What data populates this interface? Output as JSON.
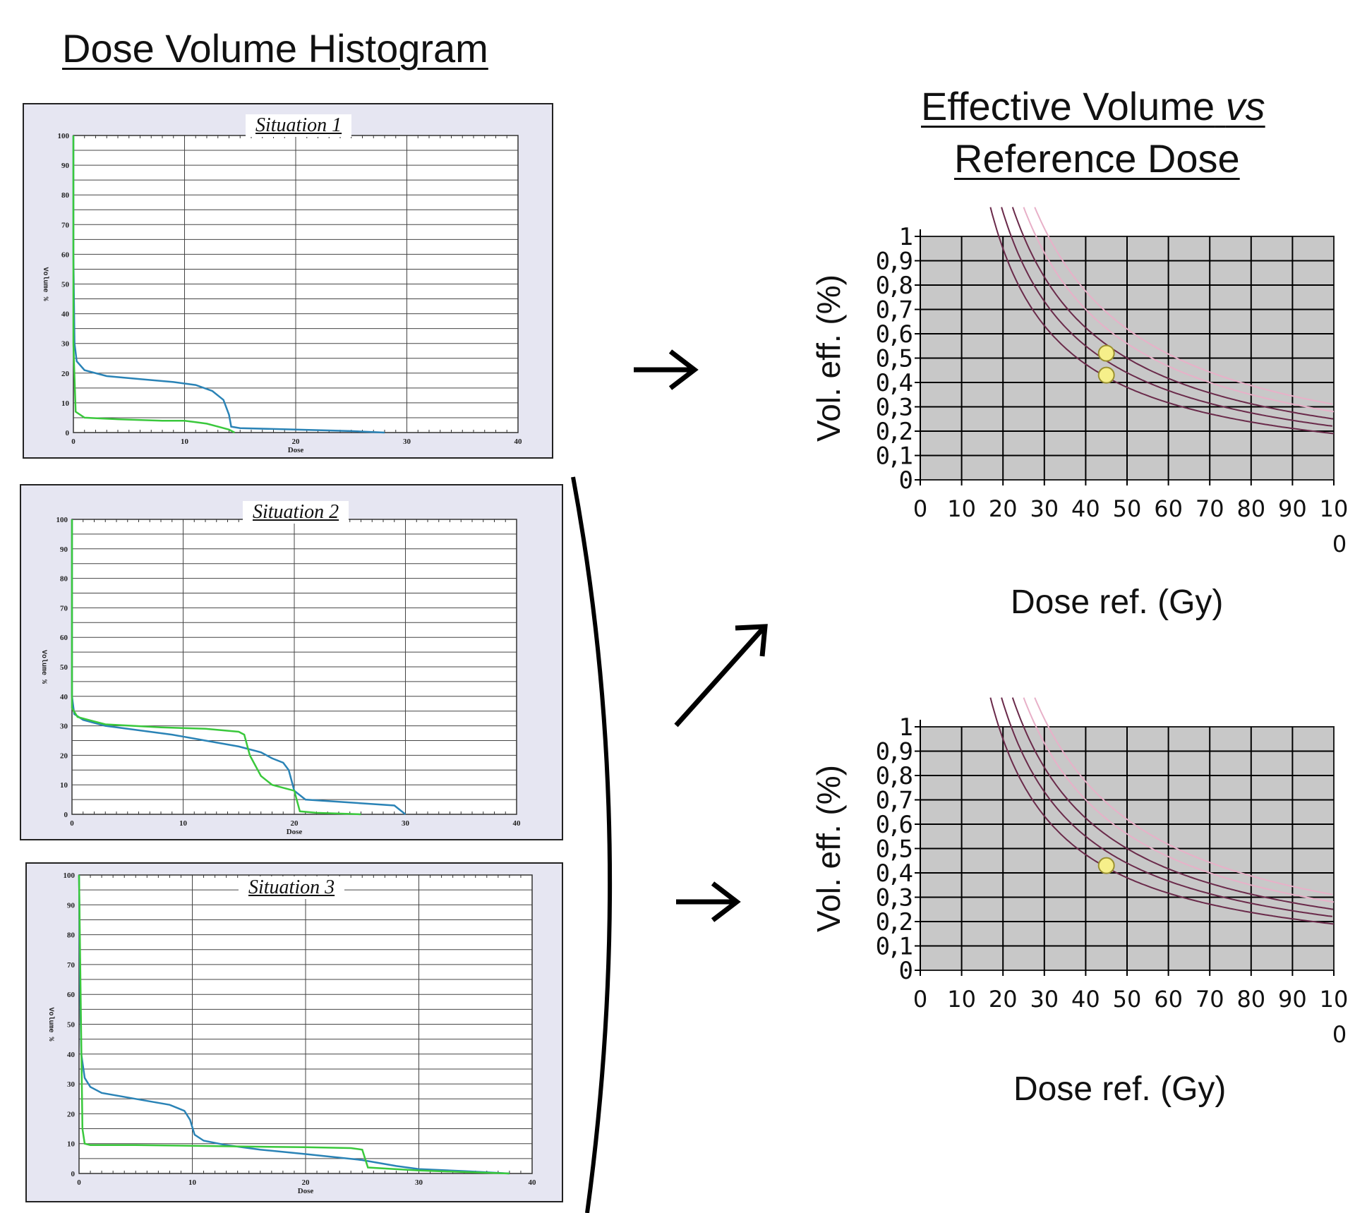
{
  "dvh_title": "Dose Volume Histogram",
  "ev_title_line1": "Effective Volume",
  "ev_title_vs": "vs",
  "ev_title_line2": "Reference Dose",
  "colors": {
    "panel_bg": "#e6e6f2",
    "blue_series": "#2a83b6",
    "green_series": "#3ac83c",
    "ev_bg": "#c8c8c8",
    "point": "#f6ef8a",
    "curve_dark": "#6a2a4a",
    "curve_light": "#e8b0c8"
  },
  "chart_data": [
    {
      "type": "line",
      "title": "Situation 1",
      "xlabel": "Dose",
      "ylabel": "Volume %",
      "xlim": [
        0,
        40
      ],
      "ylim": [
        0,
        100
      ],
      "x_ticks": [
        "0",
        "10",
        "20",
        "30",
        "40"
      ],
      "y_ticks": [
        "0",
        "10",
        "20",
        "30",
        "40",
        "50",
        "60",
        "70",
        "80",
        "90",
        "100"
      ],
      "series": [
        {
          "color": "blue",
          "x": [
            0,
            0,
            0.1,
            0.3,
            1,
            3,
            6,
            9,
            11,
            12.5,
            13.5,
            14,
            14.2,
            15,
            20,
            25,
            28
          ],
          "y": [
            100,
            60,
            30,
            24,
            21,
            19,
            18,
            17,
            16,
            14,
            11,
            6,
            2,
            1.5,
            1,
            0.5,
            0
          ]
        },
        {
          "color": "green",
          "x": [
            0,
            0,
            0.2,
            1,
            4,
            8,
            10,
            11,
            12,
            13,
            14,
            14.5
          ],
          "y": [
            100,
            30,
            7,
            5,
            4.5,
            4,
            4,
            3.5,
            3,
            2,
            1,
            0
          ]
        }
      ]
    },
    {
      "type": "line",
      "title": "Situation 2",
      "xlabel": "Dose",
      "ylabel": "Volume %",
      "xlim": [
        0,
        40
      ],
      "ylim": [
        0,
        100
      ],
      "x_ticks": [
        "0",
        "10",
        "20",
        "30",
        "40"
      ],
      "y_ticks": [
        "0",
        "10",
        "20",
        "30",
        "40",
        "50",
        "60",
        "70",
        "80",
        "90",
        "100"
      ],
      "series": [
        {
          "color": "blue",
          "x": [
            0,
            0,
            0.2,
            1,
            3,
            6,
            9,
            12,
            15,
            16,
            17,
            18,
            19,
            19.5,
            20,
            21,
            25,
            29,
            30
          ],
          "y": [
            100,
            40,
            34,
            32,
            30,
            28.5,
            27,
            25,
            23,
            22,
            21,
            19,
            17.5,
            15,
            8,
            5,
            4,
            3,
            0
          ]
        },
        {
          "color": "green",
          "x": [
            0,
            0,
            0.5,
            3,
            8,
            12,
            15,
            15.5,
            16,
            17,
            18,
            19,
            20,
            20.5,
            22,
            26
          ],
          "y": [
            100,
            36,
            33,
            30.5,
            29.5,
            29,
            28,
            27,
            20,
            13,
            10,
            9,
            8,
            1,
            0.5,
            0
          ]
        }
      ]
    },
    {
      "type": "line",
      "title": "Situation 3",
      "xlabel": "Dose",
      "ylabel": "Volume %",
      "xlim": [
        0,
        40
      ],
      "ylim": [
        0,
        100
      ],
      "x_ticks": [
        "0",
        "10",
        "20",
        "30",
        "40"
      ],
      "y_ticks": [
        "0",
        "10",
        "20",
        "30",
        "40",
        "50",
        "60",
        "70",
        "80",
        "90",
        "100"
      ],
      "series": [
        {
          "color": "blue",
          "x": [
            0,
            0.1,
            0.2,
            0.5,
            1,
            2,
            5,
            8,
            9.3,
            9.8,
            10.2,
            11,
            13,
            16,
            20,
            25,
            28,
            30,
            34,
            38
          ],
          "y": [
            100,
            60,
            40,
            32,
            29,
            27,
            25,
            23,
            21,
            18,
            13,
            11,
            9.5,
            8,
            6.5,
            4.5,
            2.5,
            1.5,
            0.8,
            0
          ]
        },
        {
          "color": "green",
          "x": [
            0,
            0.3,
            0.5,
            1,
            5,
            10,
            15,
            20,
            24,
            25,
            25.5,
            30,
            38
          ],
          "y": [
            100,
            15,
            10,
            9.5,
            9.5,
            9.3,
            9,
            8.8,
            8.5,
            8,
            2,
            1,
            0
          ]
        }
      ]
    },
    {
      "type": "scatter",
      "title": "",
      "xlabel": "Dose ref. (Gy)",
      "ylabel": "Vol. eff. (%)",
      "xlim": [
        0,
        100
      ],
      "ylim": [
        0,
        1
      ],
      "x_ticks": [
        "0",
        "10",
        "20",
        "30",
        "40",
        "50",
        "60",
        "70",
        "80",
        "90",
        "10\n0"
      ],
      "y_ticks": [
        "0",
        "0,1",
        "0,2",
        "0,3",
        "0,4",
        "0,5",
        "0,6",
        "0,7",
        "0,8",
        "0,9",
        "1"
      ],
      "points": [
        {
          "x": 45,
          "y": 0.52
        },
        {
          "x": 45,
          "y": 0.43
        }
      ],
      "iso_curves_k": [
        19,
        22,
        25,
        28,
        31
      ]
    },
    {
      "type": "scatter",
      "title": "",
      "xlabel": "Dose ref. (Gy)",
      "ylabel": "Vol. eff. (%)",
      "xlim": [
        0,
        100
      ],
      "ylim": [
        0,
        1
      ],
      "x_ticks": [
        "0",
        "10",
        "20",
        "30",
        "40",
        "50",
        "60",
        "70",
        "80",
        "90",
        "10\n0"
      ],
      "y_ticks": [
        "0",
        "0,1",
        "0,2",
        "0,3",
        "0,4",
        "0,5",
        "0,6",
        "0,7",
        "0,8",
        "0,9",
        "1"
      ],
      "points": [
        {
          "x": 45,
          "y": 0.43
        }
      ],
      "iso_curves_k": [
        19,
        22,
        25,
        28,
        31
      ]
    }
  ]
}
